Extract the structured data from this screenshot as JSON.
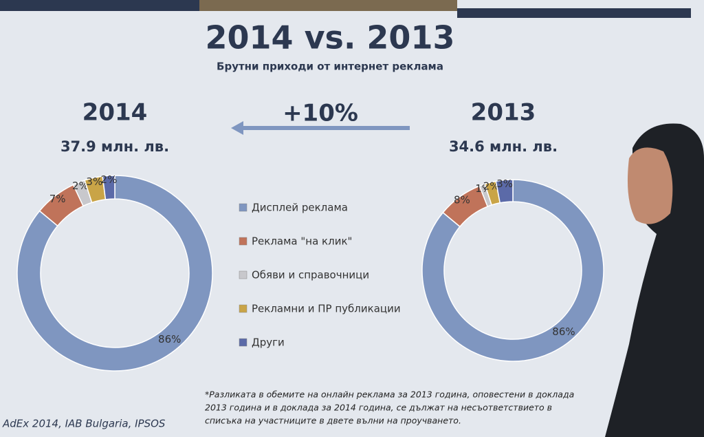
{
  "slide": {
    "title": "2014 vs. 2013",
    "subtitle": "Брутни приходи от интернет реклама",
    "change": "+10%",
    "footnote": [
      "*Разликата в обемите на онлайн реклама за 2013 година, оповестени в доклада",
      "2013 година и в доклада за 2014 година, се дължат на несъответствието в",
      "списъка на участниците в двете вълни на проучването."
    ],
    "source": "AdEx 2014, IAB Bulgaria, IPSOS"
  },
  "chart_data": [
    {
      "type": "donut",
      "title": "2014",
      "subtitle": "37.9 млн. лв.",
      "categories": [
        "Дисплей реклама",
        "Реклама \"на клик\"",
        "Обяви и справочници",
        "Рекламни и ПР публикации",
        "Други"
      ],
      "values": [
        86,
        7,
        2,
        3,
        2
      ],
      "value_labels": [
        "86%",
        "7%",
        "2%",
        "3%",
        "2%"
      ],
      "colors": [
        "#7f96c0",
        "#c0735a",
        "#c8c8cc",
        "#c9a447",
        "#5b6aa8"
      ]
    },
    {
      "type": "donut",
      "title": "2013",
      "subtitle": "34.6 млн. лв.",
      "categories": [
        "Дисплей реклама",
        "Реклама \"на клик\"",
        "Обяви и справочници",
        "Рекламни и ПР публикации",
        "Други"
      ],
      "values": [
        86,
        8,
        1,
        2,
        3
      ],
      "value_labels": [
        "86%",
        "8%",
        "1%",
        "2%",
        "3%"
      ],
      "colors": [
        "#7f96c0",
        "#c0735a",
        "#c8c8cc",
        "#c9a447",
        "#5b6aa8"
      ]
    }
  ]
}
